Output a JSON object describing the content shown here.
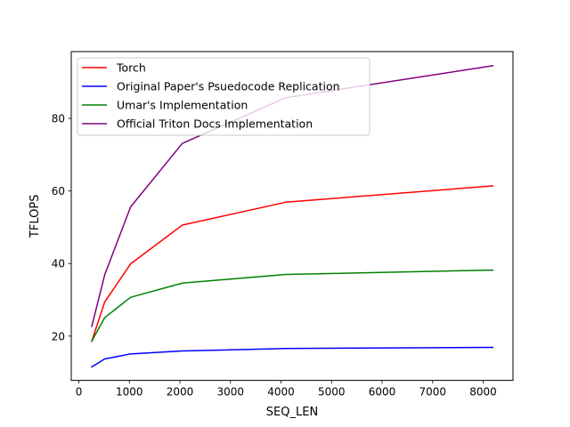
{
  "chart_data": {
    "type": "line",
    "title": "",
    "xlabel": "SEQ_LEN",
    "ylabel": "TFLOPS",
    "xlim": [
      -150,
      8590
    ],
    "ylim": [
      7.8,
      98.4
    ],
    "xticks": [
      0,
      1000,
      2000,
      3000,
      4000,
      5000,
      6000,
      7000,
      8000
    ],
    "yticks": [
      20,
      40,
      60,
      80
    ],
    "grid": false,
    "legend_position": "upper-left",
    "x": [
      256,
      512,
      1024,
      2048,
      4096,
      8192
    ],
    "series": [
      {
        "name": "Torch",
        "color": "#ff0000",
        "values": [
          18.6,
          29.4,
          39.9,
          50.6,
          56.9,
          61.4
        ]
      },
      {
        "name": "Original Paper's Psuedocode Replication",
        "color": "#0000ff",
        "values": [
          11.5,
          13.7,
          15.1,
          15.9,
          16.6,
          16.9
        ]
      },
      {
        "name": "Umar's Implementation",
        "color": "#008000",
        "values": [
          18.6,
          25.1,
          30.7,
          34.6,
          37.0,
          38.2
        ]
      },
      {
        "name": "Official Triton Docs Implementation",
        "color": "#800080",
        "values": [
          22.7,
          36.9,
          55.6,
          73.1,
          85.7,
          94.5
        ]
      }
    ]
  }
}
